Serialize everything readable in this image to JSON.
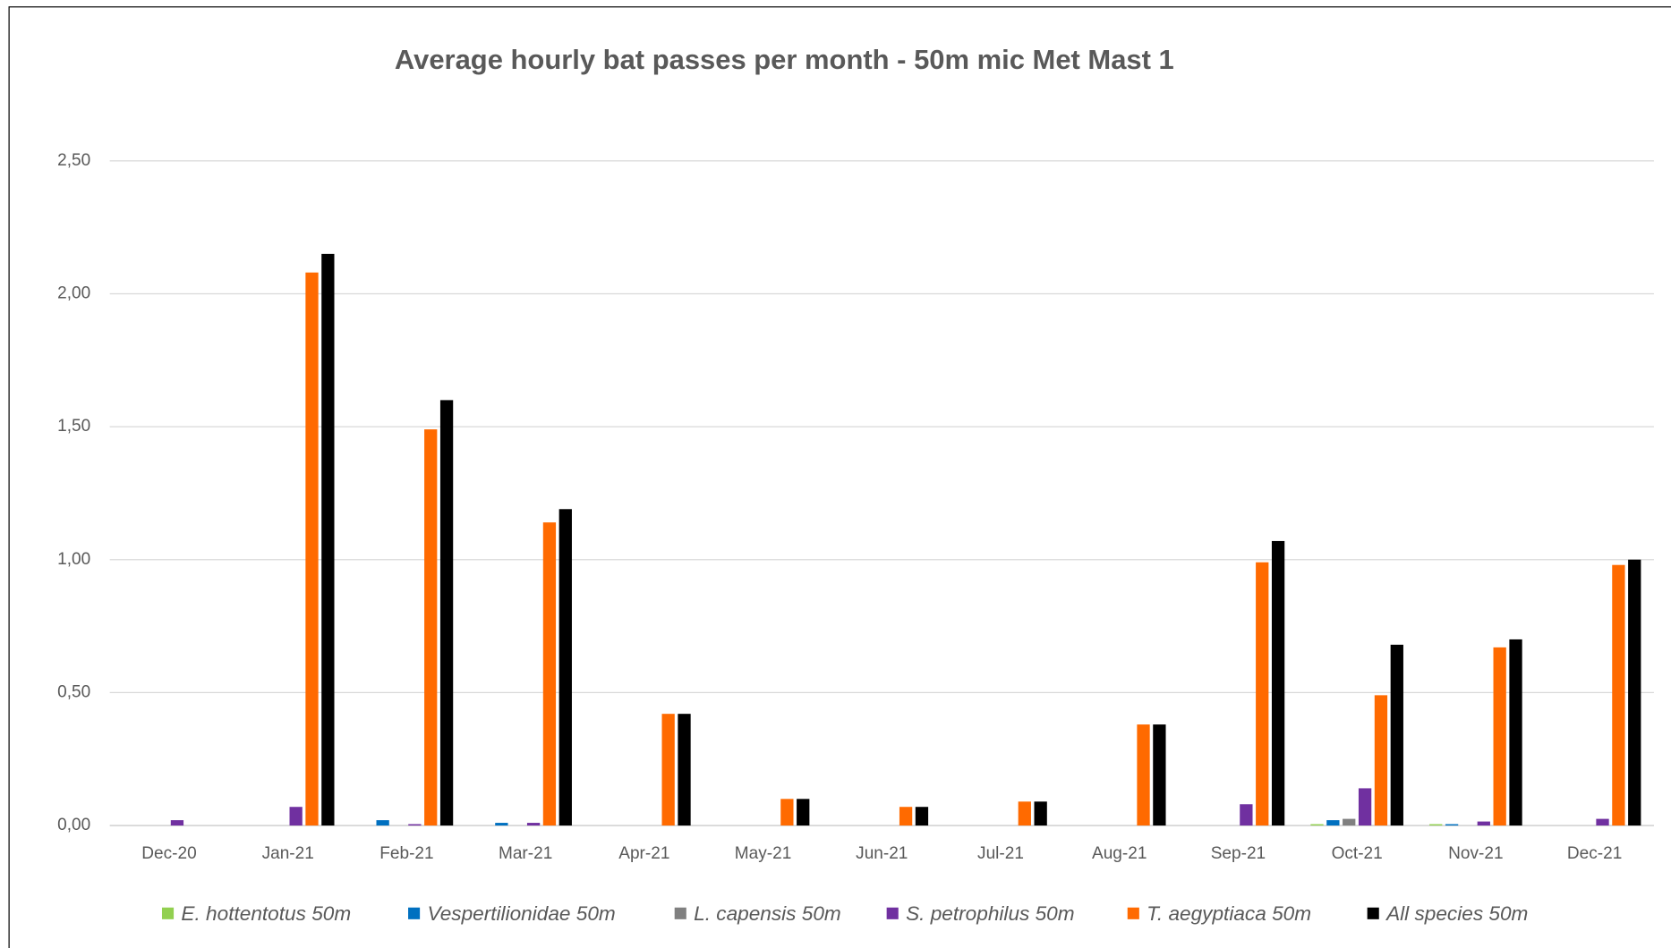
{
  "chart_data": {
    "type": "bar",
    "title": "Average hourly bat passes per month - 50m mic Met Mast 1",
    "categories": [
      "Dec-20",
      "Jan-21",
      "Feb-21",
      "Mar-21",
      "Apr-21",
      "May-21",
      "Jun-21",
      "Jul-21",
      "Aug-21",
      "Sep-21",
      "Oct-21",
      "Nov-21",
      "Dec-21"
    ],
    "series": [
      {
        "name": "E. hottentotus 50m",
        "color": "#92d050",
        "values": [
          0,
          0,
          0,
          0,
          0,
          0,
          0,
          0,
          0,
          0,
          0.005,
          0.005,
          0
        ]
      },
      {
        "name": "Vespertilionidae 50m",
        "color": "#0070c0",
        "values": [
          0,
          0,
          0.02,
          0.01,
          0,
          0,
          0,
          0,
          0,
          0,
          0.02,
          0.005,
          0
        ]
      },
      {
        "name": "L. capensis 50m",
        "color": "#808080",
        "values": [
          0,
          0,
          0,
          0,
          0,
          0,
          0,
          0,
          0,
          0,
          0.025,
          0,
          0
        ]
      },
      {
        "name": "S. petrophilus 50m",
        "color": "#7030a0",
        "values": [
          0.02,
          0.07,
          0.005,
          0.01,
          0,
          0,
          0,
          0,
          0,
          0.08,
          0.14,
          0.015,
          0.025
        ]
      },
      {
        "name": "T. aegyptiaca 50m",
        "color": "#ff6a00",
        "values": [
          0,
          2.08,
          1.49,
          1.14,
          0.42,
          0.1,
          0.07,
          0.09,
          0.38,
          0.99,
          0.49,
          0.67,
          0.98
        ]
      },
      {
        "name": "All species 50m",
        "color": "#000000",
        "values": [
          0,
          2.15,
          1.6,
          1.19,
          0.42,
          0.1,
          0.07,
          0.09,
          0.38,
          1.07,
          0.68,
          0.7,
          1.0
        ]
      }
    ],
    "ylim": [
      0,
      2.5
    ],
    "yticks": [
      {
        "value": 0,
        "label": "0,00"
      },
      {
        "value": 0.5,
        "label": "0,50"
      },
      {
        "value": 1,
        "label": "1,00"
      },
      {
        "value": 1.5,
        "label": "1,50"
      },
      {
        "value": 2,
        "label": "2,00"
      },
      {
        "value": 2.5,
        "label": "2,50"
      }
    ],
    "grid": true,
    "legend": "bottom"
  }
}
